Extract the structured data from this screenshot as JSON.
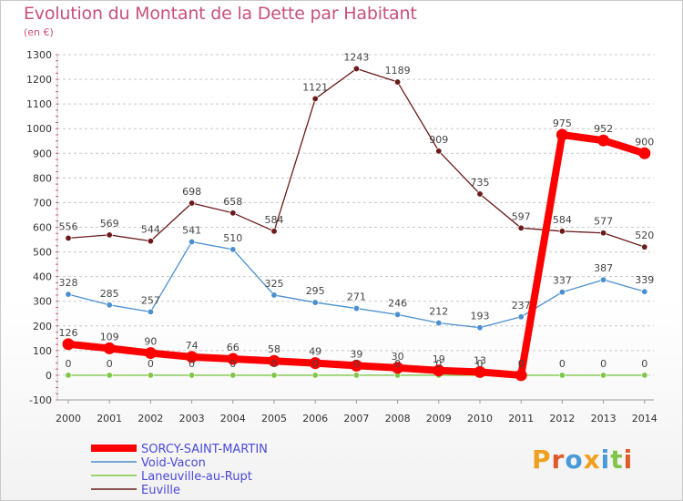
{
  "chart_data": {
    "type": "line",
    "title": "Evolution du Montant de la Dette par Habitant",
    "subtitle": "(en €)",
    "categories": [
      "2000",
      "2001",
      "2002",
      "2003",
      "2004",
      "2005",
      "2006",
      "2007",
      "2008",
      "2009",
      "2010",
      "2011",
      "2012",
      "2013",
      "2014"
    ],
    "ylim": [
      -100,
      1300
    ],
    "yticks": [
      -100,
      0,
      100,
      200,
      300,
      400,
      500,
      600,
      700,
      800,
      900,
      1000,
      1100,
      1200,
      1300
    ],
    "grid": "horizontal dashed",
    "legend_position": "bottom-left",
    "series": [
      {
        "name": "Euville",
        "color": "#6b1a1a",
        "values": [
          556,
          569,
          544,
          698,
          658,
          584,
          1121,
          1243,
          1189,
          909,
          735,
          597,
          584,
          577,
          520
        ],
        "labels": [
          "556",
          "569",
          "544",
          "698",
          "658",
          "584",
          "1121",
          "1243",
          "1189",
          "909",
          "735",
          "597",
          "584",
          "577",
          "520"
        ]
      },
      {
        "name": "Void-Vacon",
        "color": "#4a8fcf",
        "values": [
          328,
          285,
          257,
          541,
          510,
          325,
          295,
          271,
          246,
          212,
          193,
          237,
          337,
          387,
          339
        ],
        "labels": [
          "328",
          "285",
          "257",
          "541",
          "510",
          "325",
          "295",
          "271",
          "246",
          "212",
          "193",
          "237",
          "337",
          "387",
          "339"
        ]
      },
      {
        "name": "Laneuville-au-Rupt",
        "color": "#7fc64a",
        "values": [
          0,
          0,
          0,
          0,
          0,
          0,
          0,
          0,
          0,
          0,
          0,
          0,
          0,
          0,
          0
        ],
        "labels": [
          "0",
          "0",
          "0",
          "0",
          "0",
          "0",
          "0",
          "0",
          "0",
          "0",
          "0",
          "0",
          "0",
          "0",
          "0"
        ]
      },
      {
        "name": "SORCY-SAINT-MARTIN",
        "color": "#ff0000",
        "values": [
          126,
          109,
          90,
          74,
          66,
          58,
          49,
          39,
          30,
          19,
          13,
          0,
          975,
          952,
          900
        ],
        "labels": [
          "126",
          "109",
          "90",
          "74",
          "66",
          "58",
          "49",
          "39",
          "30",
          "19",
          "13",
          "0",
          "975",
          "952",
          "900"
        ]
      }
    ]
  },
  "legend": [
    {
      "name": "SORCY-SAINT-MARTIN",
      "color": "#ff0000",
      "text_color": "#4a4ad8"
    },
    {
      "name": "Void-Vacon",
      "color": "#4a8fcf",
      "text_color": "#4a4ad8"
    },
    {
      "name": "Laneuville-au-Rupt",
      "color": "#7fc64a",
      "text_color": "#4a4ad8"
    },
    {
      "name": "Euville",
      "color": "#6b1a1a",
      "text_color": "#4a4ad8"
    }
  ],
  "logo": {
    "text": "Proxiti"
  }
}
